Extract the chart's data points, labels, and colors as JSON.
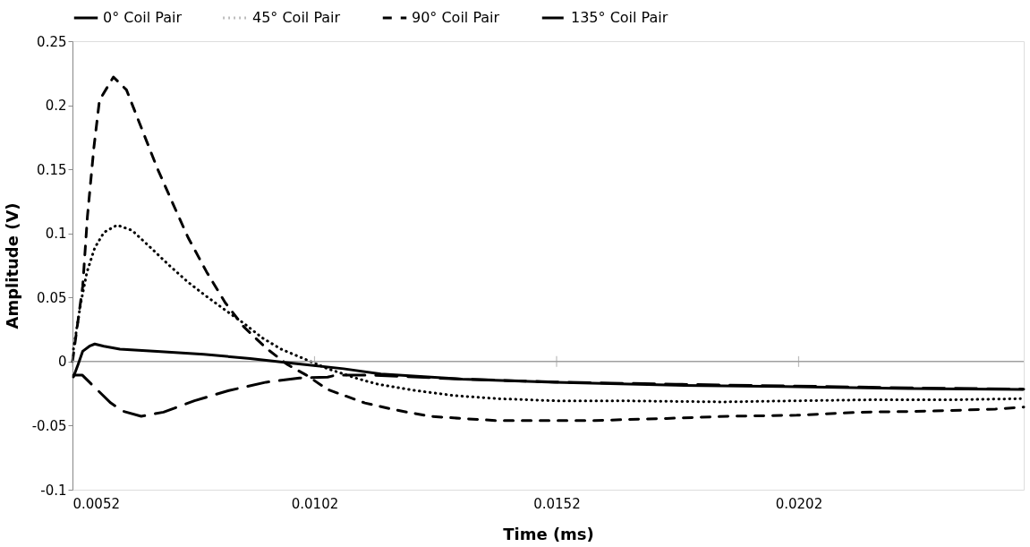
{
  "chart_data": {
    "type": "line",
    "xlabel": "Time (ms)",
    "ylabel": "Amplitude (V)",
    "xlim": [
      0.0052,
      0.02485
    ],
    "xticks": [
      0.0052,
      0.0102,
      0.0152,
      0.0202
    ],
    "ylim": [
      -0.1,
      0.25
    ],
    "yticks": [
      -0.1,
      -0.05,
      0,
      0.05,
      0.1,
      0.15,
      0.2,
      0.25
    ],
    "grid": false,
    "legend": "top",
    "marker": "none",
    "ref_lines": [
      {
        "axis": "y",
        "value": 0,
        "color": "#a0a0a0"
      }
    ],
    "series": [
      {
        "name": "0° Coil Pair",
        "color": "#000000",
        "line_style": "solid",
        "x": [
          0.00522,
          0.005315,
          0.00541,
          0.00555,
          0.00566,
          0.00585,
          0.00618,
          0.00695,
          0.00791,
          0.00887,
          0.00983,
          0.0108,
          0.01157,
          0.01324,
          0.01516,
          0.01766,
          0.01989,
          0.02247,
          0.02483
        ],
        "values": [
          -0.012,
          -0.0024,
          0.008,
          0.012,
          0.0137,
          0.012,
          0.0097,
          0.008,
          0.0056,
          0.0024,
          -0.0016,
          -0.0056,
          -0.0097,
          -0.0137,
          -0.0161,
          -0.0185,
          -0.0194,
          -0.021,
          -0.0218
        ]
      },
      {
        "name": "45° Coil Pair",
        "color": "#000000",
        "line_style": "dotted",
        "x": [
          0.00522,
          0.005373,
          0.0055,
          0.00566,
          0.00585,
          0.00612,
          0.00643,
          0.00682,
          0.0072,
          0.007585,
          0.00797,
          0.00835,
          0.00874,
          0.00912,
          0.00951,
          0.00997,
          0.01047,
          0.01112,
          0.01151,
          0.01228,
          0.0131,
          0.014,
          0.01516,
          0.01643,
          0.01862,
          0.02022,
          0.02182,
          0.02343,
          0.02478
        ],
        "values": [
          0.0097,
          0.046,
          0.07,
          0.0887,
          0.1008,
          0.1065,
          0.1024,
          0.0887,
          0.075,
          0.062,
          0.0508,
          0.0403,
          0.0298,
          0.0185,
          0.0097,
          0.0024,
          -0.0056,
          -0.0137,
          -0.0177,
          -0.0226,
          -0.0266,
          -0.029,
          -0.0306,
          -0.0306,
          -0.0315,
          -0.0306,
          -0.0298,
          -0.0298,
          -0.029
        ]
      },
      {
        "name": "90° Coil Pair",
        "color": "#000000",
        "line_style": "dashed",
        "x": [
          0.0052,
          0.005412,
          0.005508,
          0.005642,
          0.005758,
          0.006046,
          0.006315,
          0.0067,
          0.00695,
          0.007277,
          0.007585,
          0.00797,
          0.008354,
          0.00874,
          0.0092,
          0.009642,
          0.010027,
          0.01047,
          0.01124,
          0.011892,
          0.012585,
          0.013238,
          0.01393,
          0.014642,
          0.015354,
          0.01599,
          0.0167,
          0.01747,
          0.01874,
          0.02016,
          0.02151,
          0.02291,
          0.02426,
          0.02485
        ],
        "values": [
          0.0,
          0.059,
          0.113,
          0.167,
          0.204,
          0.222,
          0.212,
          0.175,
          0.151,
          0.123,
          0.097,
          0.07,
          0.046,
          0.027,
          0.0105,
          -0.0024,
          -0.0105,
          -0.0218,
          -0.0323,
          -0.0379,
          -0.0427,
          -0.0444,
          -0.046,
          -0.046,
          -0.046,
          -0.046,
          -0.0452,
          -0.0444,
          -0.0427,
          -0.0419,
          -0.0395,
          -0.0387,
          -0.0371,
          -0.0355
        ]
      },
      {
        "name": "135° Coil Pair",
        "color": "#000000",
        "line_style": "dashed",
        "x": [
          0.00522,
          0.0054,
          0.00566,
          0.00599,
          0.00624,
          0.00662,
          0.00708,
          0.00772,
          0.00843,
          0.0092,
          0.00989,
          0.01047,
          0.01066,
          0.01132,
          0.01324,
          0.01516,
          0.01766,
          0.01989,
          0.02247,
          0.02485
        ],
        "values": [
          -0.0105,
          -0.0105,
          -0.0202,
          -0.0323,
          -0.0387,
          -0.0427,
          -0.0395,
          -0.0306,
          -0.0226,
          -0.0161,
          -0.0129,
          -0.0121,
          -0.0105,
          -0.0105,
          -0.0137,
          -0.016,
          -0.0177,
          -0.019,
          -0.0205,
          -0.0215
        ]
      }
    ]
  }
}
